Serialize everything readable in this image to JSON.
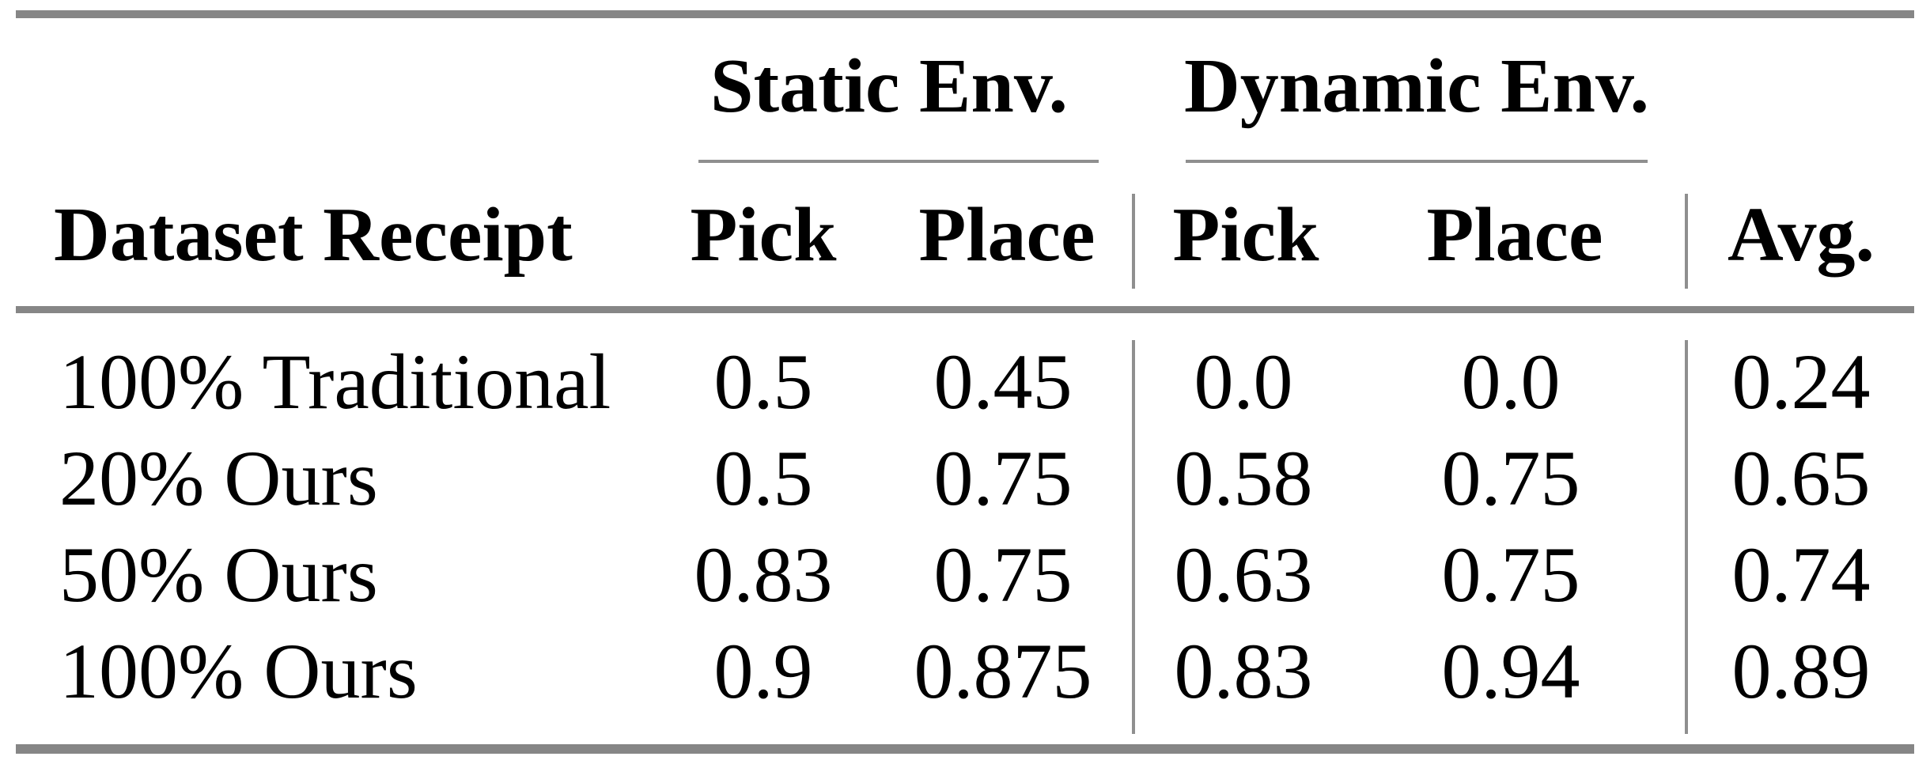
{
  "table": {
    "group_headers": [
      {
        "label": "Static Env."
      },
      {
        "label": "Dynamic Env."
      }
    ],
    "columns": {
      "row_header": "Dataset Receipt",
      "static_pick": "Pick",
      "static_place": "Place",
      "dynamic_pick": "Pick",
      "dynamic_place": "Place",
      "avg": "Avg."
    },
    "rows": [
      {
        "label": "100% Traditional",
        "values": [
          "0.5",
          "0.45",
          "0.0",
          "0.0",
          "0.24"
        ]
      },
      {
        "label": "20% Ours",
        "values": [
          "0.5",
          "0.75",
          "0.58",
          "0.75",
          "0.65"
        ]
      },
      {
        "label": "50% Ours",
        "values": [
          "0.83",
          "0.75",
          "0.63",
          "0.75",
          "0.74"
        ]
      },
      {
        "label": "100% Ours",
        "values": [
          "0.9",
          "0.875",
          "0.83",
          "0.94",
          "0.89"
        ]
      }
    ]
  },
  "colors": {
    "rule_thick": "#868686",
    "rule_thin": "#8f8f8f",
    "text": "#000000",
    "background": "#ffffff"
  },
  "chart_data": {
    "type": "table",
    "title": "",
    "column_groups": [
      "Static Env.",
      "Dynamic Env."
    ],
    "columns": [
      "Dataset Receipt",
      "Static Env. Pick",
      "Static Env. Place",
      "Dynamic Env. Pick",
      "Dynamic Env. Place",
      "Avg."
    ],
    "rows": [
      [
        "100% Traditional",
        0.5,
        0.45,
        0.0,
        0.0,
        0.24
      ],
      [
        "20% Ours",
        0.5,
        0.75,
        0.58,
        0.75,
        0.65
      ],
      [
        "50% Ours",
        0.83,
        0.75,
        0.63,
        0.75,
        0.74
      ],
      [
        "100% Ours",
        0.9,
        0.875,
        0.83,
        0.94,
        0.89
      ]
    ]
  }
}
